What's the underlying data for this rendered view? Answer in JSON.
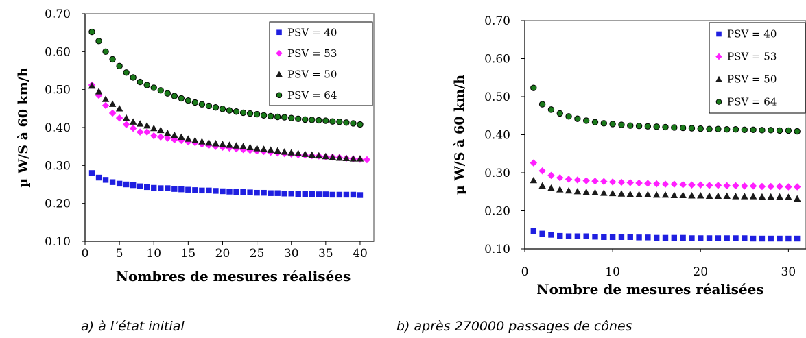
{
  "chart_data": [
    {
      "type": "scatter",
      "caption": "a) à  l’état initial",
      "xlabel": "Nombres de mesures réalisées",
      "ylabel": "µ W/S à 60 km/h",
      "xlim": [
        0,
        42
      ],
      "ylim": [
        0.1,
        0.7
      ],
      "xticks": [
        "0",
        "5",
        "10",
        "15",
        "20",
        "25",
        "30",
        "35",
        "40"
      ],
      "yticks": [
        "0.10",
        "0.20",
        "0.30",
        "0.40",
        "0.50",
        "0.60",
        "0.70"
      ],
      "legend_position": "top-right",
      "series": [
        {
          "name": "PSV = 40",
          "marker": "square",
          "color": "#1f1fe0",
          "values": [
            0.28,
            0.268,
            0.262,
            0.256,
            0.252,
            0.25,
            0.248,
            0.245,
            0.243,
            0.241,
            0.24,
            0.24,
            0.238,
            0.237,
            0.236,
            0.235,
            0.234,
            0.234,
            0.233,
            0.232,
            0.231,
            0.23,
            0.23,
            0.229,
            0.228,
            0.228,
            0.227,
            0.227,
            0.226,
            0.226,
            0.225,
            0.225,
            0.225,
            0.224,
            0.224,
            0.223,
            0.223,
            0.223,
            0.223,
            0.222
          ]
        },
        {
          "name": "PSV = 53",
          "marker": "diamond",
          "color": "#ff1fff",
          "values": [
            0.512,
            0.485,
            0.458,
            0.438,
            0.425,
            0.408,
            0.398,
            0.388,
            0.388,
            0.378,
            0.375,
            0.372,
            0.368,
            0.366,
            0.362,
            0.36,
            0.356,
            0.353,
            0.35,
            0.348,
            0.346,
            0.344,
            0.342,
            0.34,
            0.338,
            0.337,
            0.335,
            0.333,
            0.331,
            0.33,
            0.328,
            0.327,
            0.326,
            0.325,
            0.323,
            0.322,
            0.321,
            0.319,
            0.317,
            0.316,
            0.315
          ]
        },
        {
          "name": "PSV = 50",
          "marker": "triangle",
          "color": "#1a1a1a",
          "values": [
            0.51,
            0.495,
            0.475,
            0.462,
            0.45,
            0.425,
            0.415,
            0.41,
            0.405,
            0.398,
            0.393,
            0.385,
            0.38,
            0.375,
            0.37,
            0.366,
            0.363,
            0.36,
            0.358,
            0.356,
            0.354,
            0.352,
            0.35,
            0.348,
            0.345,
            0.343,
            0.341,
            0.339,
            0.336,
            0.334,
            0.332,
            0.33,
            0.328,
            0.326,
            0.324,
            0.322,
            0.32,
            0.319,
            0.318,
            0.318
          ]
        },
        {
          "name": "PSV = 64",
          "marker": "circle",
          "color": "#1a7a1a",
          "values": [
            0.652,
            0.628,
            0.6,
            0.58,
            0.562,
            0.545,
            0.532,
            0.52,
            0.512,
            0.505,
            0.498,
            0.49,
            0.483,
            0.477,
            0.471,
            0.466,
            0.461,
            0.457,
            0.453,
            0.449,
            0.445,
            0.442,
            0.439,
            0.437,
            0.435,
            0.432,
            0.43,
            0.428,
            0.427,
            0.425,
            0.423,
            0.421,
            0.42,
            0.419,
            0.418,
            0.416,
            0.415,
            0.413,
            0.411,
            0.408
          ]
        }
      ]
    },
    {
      "type": "scatter",
      "caption": "b) après 270000 passages de cônes",
      "xlabel": "Nombre de mesures réalisées",
      "ylabel": "µ W/S à 60 km/h",
      "xlim": [
        0,
        32
      ],
      "ylim": [
        0.1,
        0.7
      ],
      "xticks": [
        "0",
        "10",
        "20",
        "30"
      ],
      "yticks": [
        "0.10",
        "0.20",
        "0.30",
        "0.40",
        "0.50",
        "0.60",
        "0.70"
      ],
      "legend_position": "top-right",
      "series": [
        {
          "name": "PSV = 40",
          "marker": "square",
          "color": "#1f1fe0",
          "values": [
            0.147,
            0.14,
            0.137,
            0.134,
            0.133,
            0.133,
            0.133,
            0.132,
            0.131,
            0.131,
            0.131,
            0.131,
            0.13,
            0.13,
            0.129,
            0.129,
            0.129,
            0.129,
            0.128,
            0.128,
            0.128,
            0.128,
            0.128,
            0.128,
            0.128,
            0.127,
            0.127,
            0.127,
            0.127,
            0.127,
            0.127
          ]
        },
        {
          "name": "PSV = 53",
          "marker": "diamond",
          "color": "#ff1fff",
          "values": [
            0.326,
            0.305,
            0.293,
            0.287,
            0.283,
            0.281,
            0.279,
            0.278,
            0.277,
            0.276,
            0.275,
            0.274,
            0.273,
            0.272,
            0.271,
            0.27,
            0.27,
            0.269,
            0.268,
            0.268,
            0.267,
            0.267,
            0.266,
            0.266,
            0.265,
            0.265,
            0.264,
            0.264,
            0.264,
            0.263,
            0.263
          ]
        },
        {
          "name": "PSV = 50",
          "marker": "triangle",
          "color": "#1a1a1a",
          "values": [
            0.28,
            0.266,
            0.26,
            0.256,
            0.253,
            0.251,
            0.249,
            0.248,
            0.247,
            0.246,
            0.245,
            0.244,
            0.243,
            0.243,
            0.242,
            0.242,
            0.241,
            0.241,
            0.24,
            0.24,
            0.239,
            0.239,
            0.239,
            0.238,
            0.238,
            0.238,
            0.237,
            0.237,
            0.237,
            0.236,
            0.232
          ]
        },
        {
          "name": "PSV = 64",
          "marker": "circle",
          "color": "#1a7a1a",
          "values": [
            0.523,
            0.48,
            0.466,
            0.456,
            0.448,
            0.442,
            0.437,
            0.433,
            0.43,
            0.428,
            0.426,
            0.424,
            0.423,
            0.422,
            0.421,
            0.42,
            0.419,
            0.418,
            0.417,
            0.416,
            0.415,
            0.415,
            0.414,
            0.414,
            0.413,
            0.413,
            0.412,
            0.412,
            0.411,
            0.411,
            0.409
          ]
        }
      ]
    }
  ]
}
